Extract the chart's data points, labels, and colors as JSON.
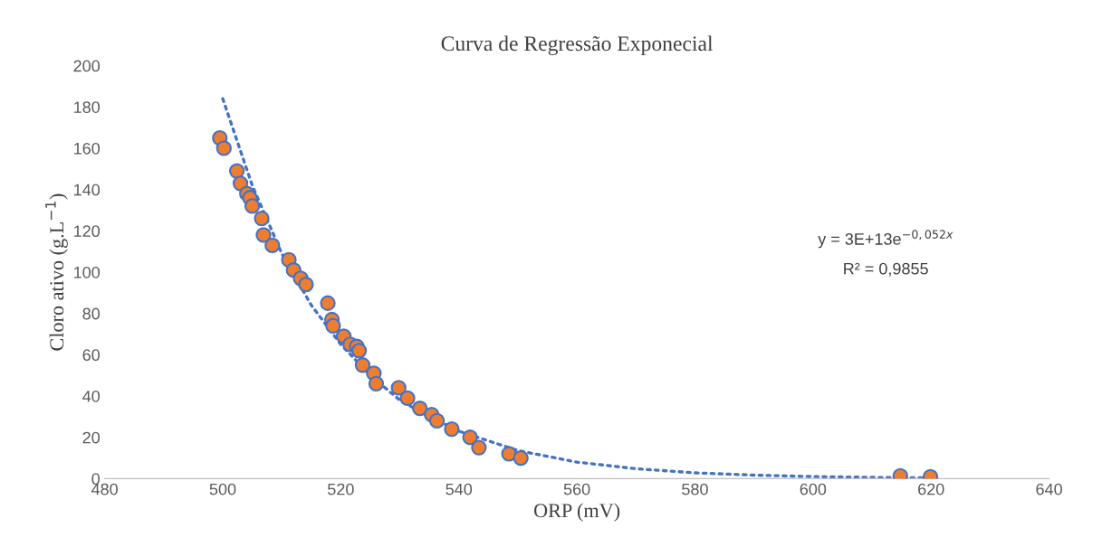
{
  "chart_data": {
    "type": "scatter",
    "title": "Curva de Regressão Exponecial",
    "xlabel": "ORP (mV)",
    "ylabel": "Cloro ativo (g.L$^{−1}$)",
    "xlim": [
      480,
      640
    ],
    "xticks": [
      480,
      500,
      520,
      540,
      560,
      580,
      600,
      620,
      640
    ],
    "ylim": [
      0,
      200
    ],
    "yticks": [
      0,
      20,
      40,
      60,
      80,
      100,
      120,
      140,
      160,
      180,
      200
    ],
    "grid": false,
    "legend": false,
    "marker": "circle",
    "series": [
      {
        "color": "#ed7d31",
        "x": [
          499.5,
          500.2,
          502.4,
          503,
          504.1,
          504.6,
          505,
          506.6,
          506.9,
          508.4,
          511.2,
          512,
          513.2,
          514.1,
          517.8,
          518.5,
          518.7,
          520.5,
          521.6,
          522.7,
          523.1,
          523.7,
          525.6,
          526,
          529.8,
          531.3,
          533.4,
          535.4,
          536.3,
          538.8,
          541.9,
          543.4,
          548.5,
          550.5,
          614.8,
          619.9
        ],
        "values": [
          165,
          160,
          149,
          143,
          138,
          136,
          132,
          126,
          118,
          113,
          106,
          101,
          97,
          94,
          85,
          77,
          74,
          69,
          65,
          64,
          62,
          55,
          51,
          46,
          44,
          39,
          34,
          31,
          28,
          24,
          20,
          15,
          12,
          10,
          1.3,
          0.9
        ]
      },
      {
        "type": "line",
        "color": "#4472c4",
        "line_style": "dotted",
        "marker": "none",
        "x": [
          500,
          505,
          510,
          515,
          520,
          525,
          530,
          535,
          540,
          550,
          560,
          570,
          580,
          590,
          600,
          610,
          620
        ],
        "values": [
          184,
          142,
          109,
          84,
          65,
          50,
          38,
          30,
          23,
          13.6,
          8,
          4.8,
          2.8,
          1.7,
          1.0,
          0.6,
          0.4
        ]
      }
    ],
    "annotations": [
      "y = 3E+13e$^{−0,052x}$",
      "R² = 0,9855"
    ]
  }
}
